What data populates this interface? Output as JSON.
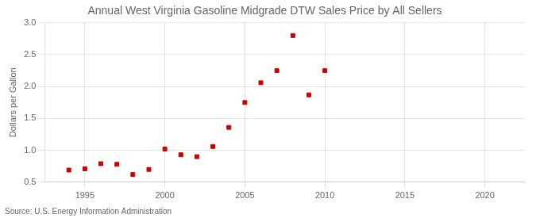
{
  "chart_data": {
    "type": "scatter",
    "title": "Annual West Virginia Gasoline Midgrade DTW Sales Price by All Sellers",
    "ylabel": "Dollars per Gallon",
    "source": "Source: U.S. Energy Information Administration",
    "x": [
      1994,
      1995,
      1996,
      1997,
      1998,
      1999,
      2000,
      2001,
      2002,
      2003,
      2004,
      2005,
      2006,
      2007,
      2008,
      2009,
      2010
    ],
    "values": [
      0.69,
      0.71,
      0.79,
      0.78,
      0.62,
      0.7,
      1.02,
      0.93,
      0.9,
      1.06,
      1.36,
      1.75,
      2.06,
      2.25,
      2.8,
      1.87,
      2.25
    ],
    "color": "#cc0000",
    "marker": "square",
    "grid": true,
    "xlim": [
      1992.5,
      2022.5
    ],
    "xticks": [
      1995,
      2000,
      2005,
      2010,
      2015,
      2020
    ],
    "ylim": [
      0.5,
      3.0
    ],
    "yticks": [
      0.5,
      {
        "value": 1.0,
        "label": "1.0"
      },
      1.5,
      {
        "value": 2.0,
        "label": "2.0"
      },
      2.5,
      {
        "value": 3.0,
        "label": "3.0"
      }
    ]
  }
}
